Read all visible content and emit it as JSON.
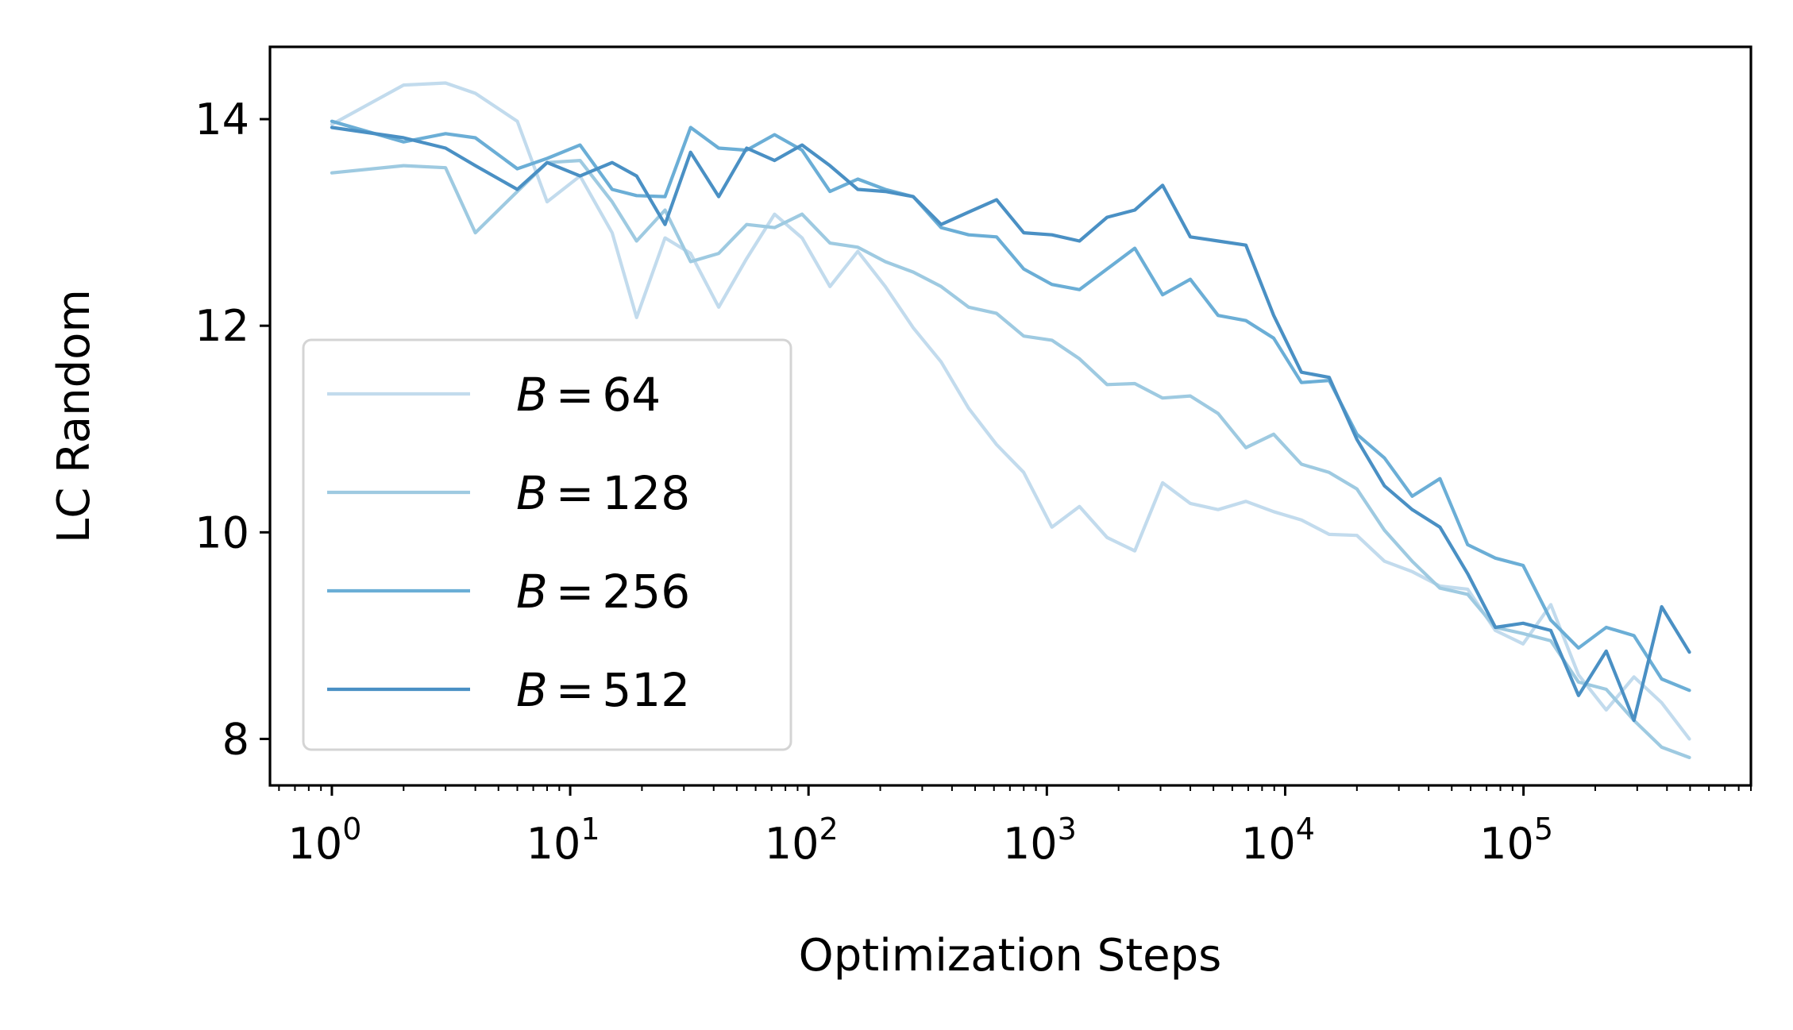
{
  "chart_data": {
    "type": "line",
    "xscale": "log",
    "xlabel": "Optimization Steps",
    "ylabel": "LC Random",
    "xlim": [
      0.55,
      900000
    ],
    "ylim": [
      7.55,
      14.7
    ],
    "x_ticks": [
      {
        "base": "10",
        "exp": "0",
        "value": 1
      },
      {
        "base": "10",
        "exp": "1",
        "value": 10
      },
      {
        "base": "10",
        "exp": "2",
        "value": 100
      },
      {
        "base": "10",
        "exp": "3",
        "value": 1000
      },
      {
        "base": "10",
        "exp": "4",
        "value": 10000
      },
      {
        "base": "10",
        "exp": "5",
        "value": 100000
      }
    ],
    "y_ticks": [
      {
        "label": "8",
        "value": 8
      },
      {
        "label": "10",
        "value": 10
      },
      {
        "label": "12",
        "value": 12
      },
      {
        "label": "14",
        "value": 14
      }
    ],
    "grid": false,
    "legend_position": "lower-left",
    "x": [
      1,
      2,
      3,
      4,
      6,
      8,
      11,
      15,
      19,
      25,
      32,
      42,
      55,
      72,
      94,
      123,
      161,
      210,
      275,
      360,
      470,
      615,
      800,
      1050,
      1370,
      1790,
      2340,
      3060,
      4000,
      5230,
      6840,
      8950,
      11700,
      15300,
      20000,
      26100,
      34100,
      44600,
      58300,
      76200,
      99600,
      130200,
      170200,
      222500,
      290800,
      380100,
      496800
    ],
    "series": [
      {
        "name_var": "B",
        "name_eq": "=",
        "name_val": "64",
        "color": "#c2dbed",
        "values": [
          13.95,
          14.33,
          14.35,
          14.25,
          13.98,
          13.2,
          13.45,
          12.9,
          12.08,
          12.85,
          12.7,
          12.18,
          12.65,
          13.08,
          12.85,
          12.38,
          12.72,
          12.38,
          11.98,
          11.65,
          11.2,
          10.85,
          10.58,
          10.05,
          10.25,
          9.95,
          9.82,
          10.48,
          10.28,
          10.22,
          10.3,
          10.2,
          10.12,
          9.98,
          9.97,
          9.72,
          9.62,
          9.48,
          9.45,
          9.05,
          8.92,
          9.3,
          8.62,
          8.28,
          8.6,
          8.35,
          8.0
        ]
      },
      {
        "name_var": "B",
        "name_eq": "=",
        "name_val": "128",
        "color": "#9ecae1",
        "values": [
          13.48,
          13.55,
          13.53,
          12.9,
          13.3,
          13.58,
          13.6,
          13.2,
          12.82,
          13.12,
          12.62,
          12.7,
          12.98,
          12.95,
          13.08,
          12.8,
          12.76,
          12.62,
          12.52,
          12.38,
          12.18,
          12.12,
          11.9,
          11.86,
          11.68,
          11.43,
          11.44,
          11.3,
          11.32,
          11.15,
          10.82,
          10.95,
          10.66,
          10.58,
          10.42,
          10.02,
          9.72,
          9.46,
          9.4,
          9.08,
          9.02,
          8.95,
          8.55,
          8.48,
          8.18,
          7.92,
          7.82
        ]
      },
      {
        "name_var": "B",
        "name_eq": "=",
        "name_val": "256",
        "color": "#6baed6",
        "values": [
          13.98,
          13.78,
          13.86,
          13.82,
          13.52,
          13.62,
          13.75,
          13.32,
          13.26,
          13.25,
          13.92,
          13.72,
          13.7,
          13.85,
          13.7,
          13.3,
          13.42,
          13.32,
          13.25,
          12.95,
          12.88,
          12.86,
          12.55,
          12.4,
          12.35,
          12.55,
          12.75,
          12.3,
          12.45,
          12.1,
          12.05,
          11.88,
          11.45,
          11.47,
          10.95,
          10.72,
          10.35,
          10.52,
          9.88,
          9.75,
          9.68,
          9.15,
          8.88,
          9.08,
          9.0,
          8.58,
          8.47
        ]
      },
      {
        "name_var": "B",
        "name_eq": "=",
        "name_val": "512",
        "color": "#4a90c4",
        "values": [
          13.92,
          13.82,
          13.72,
          13.55,
          13.32,
          13.58,
          13.45,
          13.58,
          13.45,
          12.98,
          13.68,
          13.25,
          13.72,
          13.6,
          13.75,
          13.55,
          13.32,
          13.3,
          13.25,
          12.98,
          13.1,
          13.22,
          12.9,
          12.88,
          12.82,
          13.05,
          13.12,
          13.36,
          12.86,
          12.82,
          12.78,
          12.1,
          11.55,
          11.5,
          10.9,
          10.45,
          10.22,
          10.05,
          9.6,
          9.08,
          9.12,
          9.05,
          8.42,
          8.85,
          8.18,
          9.28,
          8.84
        ]
      }
    ]
  }
}
